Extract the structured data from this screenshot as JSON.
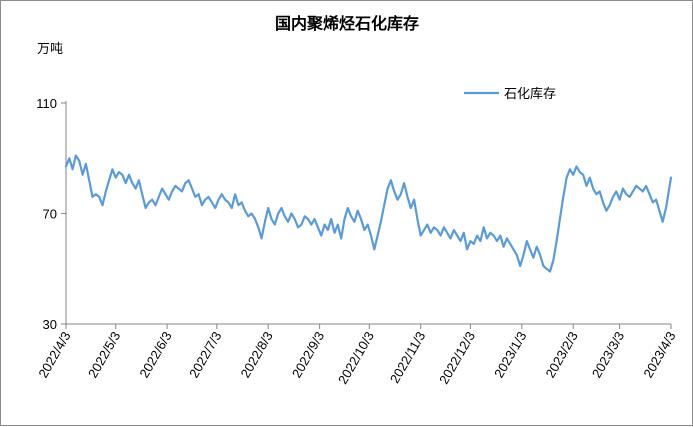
{
  "chart_data": {
    "type": "line",
    "title": "国内聚烯烃石化库存",
    "ylabel": "万吨",
    "xlabel": "",
    "ylim": [
      30,
      110
    ],
    "y_ticks": [
      "30",
      "70",
      "110"
    ],
    "x_ticks": [
      "2022/4/3",
      "2022/5/3",
      "2022/6/3",
      "2022/7/3",
      "2022/8/3",
      "2022/9/3",
      "2022/10/3",
      "2022/11/3",
      "2022/12/3",
      "2023/1/3",
      "2023/2/3",
      "2023/3/3",
      "2023/4/3"
    ],
    "grid": false,
    "legend_position": "top-right",
    "colors": {
      "series": "#5b9bd5",
      "axis": "#868686"
    },
    "series": [
      {
        "name": "石化库存",
        "points": [
          [
            "2022-04-03",
            87
          ],
          [
            "2022-04-05",
            90
          ],
          [
            "2022-04-07",
            86
          ],
          [
            "2022-04-09",
            91
          ],
          [
            "2022-04-11",
            89
          ],
          [
            "2022-04-13",
            84
          ],
          [
            "2022-04-15",
            88
          ],
          [
            "2022-04-17",
            82
          ],
          [
            "2022-04-19",
            76
          ],
          [
            "2022-04-21",
            77
          ],
          [
            "2022-04-23",
            76
          ],
          [
            "2022-04-25",
            73
          ],
          [
            "2022-04-27",
            78
          ],
          [
            "2022-04-29",
            82
          ],
          [
            "2022-05-01",
            86
          ],
          [
            "2022-05-03",
            83
          ],
          [
            "2022-05-05",
            85
          ],
          [
            "2022-05-07",
            84
          ],
          [
            "2022-05-09",
            81
          ],
          [
            "2022-05-11",
            84
          ],
          [
            "2022-05-13",
            81
          ],
          [
            "2022-05-15",
            79
          ],
          [
            "2022-05-17",
            82
          ],
          [
            "2022-05-19",
            77
          ],
          [
            "2022-05-21",
            72
          ],
          [
            "2022-05-23",
            74
          ],
          [
            "2022-05-25",
            75
          ],
          [
            "2022-05-27",
            73
          ],
          [
            "2022-05-29",
            76
          ],
          [
            "2022-05-31",
            79
          ],
          [
            "2022-06-02",
            77
          ],
          [
            "2022-06-04",
            75
          ],
          [
            "2022-06-06",
            78
          ],
          [
            "2022-06-08",
            80
          ],
          [
            "2022-06-10",
            79
          ],
          [
            "2022-06-12",
            78
          ],
          [
            "2022-06-14",
            81
          ],
          [
            "2022-06-16",
            82
          ],
          [
            "2022-06-18",
            79
          ],
          [
            "2022-06-20",
            76
          ],
          [
            "2022-06-22",
            77
          ],
          [
            "2022-06-24",
            73
          ],
          [
            "2022-06-26",
            75
          ],
          [
            "2022-06-28",
            76
          ],
          [
            "2022-06-30",
            74
          ],
          [
            "2022-07-02",
            72
          ],
          [
            "2022-07-04",
            75
          ],
          [
            "2022-07-06",
            77
          ],
          [
            "2022-07-08",
            75
          ],
          [
            "2022-07-10",
            74
          ],
          [
            "2022-07-12",
            72
          ],
          [
            "2022-07-14",
            77
          ],
          [
            "2022-07-16",
            73
          ],
          [
            "2022-07-18",
            74
          ],
          [
            "2022-07-20",
            71
          ],
          [
            "2022-07-22",
            69
          ],
          [
            "2022-07-24",
            70
          ],
          [
            "2022-07-26",
            68
          ],
          [
            "2022-07-28",
            65
          ],
          [
            "2022-07-30",
            61
          ],
          [
            "2022-08-01",
            67
          ],
          [
            "2022-08-03",
            72
          ],
          [
            "2022-08-05",
            68
          ],
          [
            "2022-08-07",
            66
          ],
          [
            "2022-08-09",
            70
          ],
          [
            "2022-08-11",
            72
          ],
          [
            "2022-08-13",
            69
          ],
          [
            "2022-08-15",
            67
          ],
          [
            "2022-08-17",
            70
          ],
          [
            "2022-08-19",
            68
          ],
          [
            "2022-08-21",
            65
          ],
          [
            "2022-08-23",
            66
          ],
          [
            "2022-08-25",
            69
          ],
          [
            "2022-08-27",
            68
          ],
          [
            "2022-08-29",
            66
          ],
          [
            "2022-08-31",
            68
          ],
          [
            "2022-09-02",
            65
          ],
          [
            "2022-09-04",
            62
          ],
          [
            "2022-09-06",
            66
          ],
          [
            "2022-09-08",
            64
          ],
          [
            "2022-09-10",
            68
          ],
          [
            "2022-09-12",
            63
          ],
          [
            "2022-09-14",
            66
          ],
          [
            "2022-09-16",
            61
          ],
          [
            "2022-09-18",
            68
          ],
          [
            "2022-09-20",
            72
          ],
          [
            "2022-09-22",
            69
          ],
          [
            "2022-09-24",
            67
          ],
          [
            "2022-09-26",
            71
          ],
          [
            "2022-09-28",
            68
          ],
          [
            "2022-09-30",
            64
          ],
          [
            "2022-10-02",
            66
          ],
          [
            "2022-10-04",
            62
          ],
          [
            "2022-10-06",
            57
          ],
          [
            "2022-10-08",
            62
          ],
          [
            "2022-10-10",
            67
          ],
          [
            "2022-10-12",
            73
          ],
          [
            "2022-10-14",
            79
          ],
          [
            "2022-10-16",
            82
          ],
          [
            "2022-10-18",
            78
          ],
          [
            "2022-10-20",
            75
          ],
          [
            "2022-10-22",
            77
          ],
          [
            "2022-10-24",
            81
          ],
          [
            "2022-10-26",
            76
          ],
          [
            "2022-10-28",
            72
          ],
          [
            "2022-10-30",
            75
          ],
          [
            "2022-11-01",
            68
          ],
          [
            "2022-11-03",
            62
          ],
          [
            "2022-11-05",
            64
          ],
          [
            "2022-11-07",
            66
          ],
          [
            "2022-11-09",
            63
          ],
          [
            "2022-11-11",
            65
          ],
          [
            "2022-11-13",
            64
          ],
          [
            "2022-11-15",
            62
          ],
          [
            "2022-11-17",
            65
          ],
          [
            "2022-11-19",
            63
          ],
          [
            "2022-11-21",
            61
          ],
          [
            "2022-11-23",
            64
          ],
          [
            "2022-11-25",
            62
          ],
          [
            "2022-11-27",
            60
          ],
          [
            "2022-11-29",
            63
          ],
          [
            "2022-12-01",
            57
          ],
          [
            "2022-12-03",
            60
          ],
          [
            "2022-12-05",
            59
          ],
          [
            "2022-12-07",
            62
          ],
          [
            "2022-12-09",
            60
          ],
          [
            "2022-12-11",
            65
          ],
          [
            "2022-12-13",
            61
          ],
          [
            "2022-12-15",
            63
          ],
          [
            "2022-12-17",
            62
          ],
          [
            "2022-12-19",
            60
          ],
          [
            "2022-12-21",
            62
          ],
          [
            "2022-12-23",
            58
          ],
          [
            "2022-12-25",
            61
          ],
          [
            "2022-12-27",
            59
          ],
          [
            "2022-12-29",
            57
          ],
          [
            "2022-12-31",
            55
          ],
          [
            "2023-01-02",
            51
          ],
          [
            "2023-01-04",
            55
          ],
          [
            "2023-01-06",
            60
          ],
          [
            "2023-01-08",
            57
          ],
          [
            "2023-01-10",
            54
          ],
          [
            "2023-01-12",
            58
          ],
          [
            "2023-01-14",
            55
          ],
          [
            "2023-01-16",
            51
          ],
          [
            "2023-01-18",
            50
          ],
          [
            "2023-01-20",
            49
          ],
          [
            "2023-01-22",
            53
          ],
          [
            "2023-01-24",
            60
          ],
          [
            "2023-01-26",
            68
          ],
          [
            "2023-01-28",
            76
          ],
          [
            "2023-01-30",
            83
          ],
          [
            "2023-02-01",
            86
          ],
          [
            "2023-02-03",
            84
          ],
          [
            "2023-02-05",
            87
          ],
          [
            "2023-02-07",
            85
          ],
          [
            "2023-02-09",
            84
          ],
          [
            "2023-02-11",
            80
          ],
          [
            "2023-02-13",
            83
          ],
          [
            "2023-02-15",
            79
          ],
          [
            "2023-02-17",
            77
          ],
          [
            "2023-02-19",
            78
          ],
          [
            "2023-02-21",
            74
          ],
          [
            "2023-02-23",
            71
          ],
          [
            "2023-02-25",
            73
          ],
          [
            "2023-02-27",
            76
          ],
          [
            "2023-03-01",
            78
          ],
          [
            "2023-03-03",
            75
          ],
          [
            "2023-03-05",
            79
          ],
          [
            "2023-03-07",
            77
          ],
          [
            "2023-03-09",
            76
          ],
          [
            "2023-03-11",
            78
          ],
          [
            "2023-03-13",
            80
          ],
          [
            "2023-03-15",
            79
          ],
          [
            "2023-03-17",
            78
          ],
          [
            "2023-03-19",
            80
          ],
          [
            "2023-03-21",
            77
          ],
          [
            "2023-03-23",
            74
          ],
          [
            "2023-03-25",
            75
          ],
          [
            "2023-03-27",
            71
          ],
          [
            "2023-03-29",
            67
          ],
          [
            "2023-03-31",
            72
          ],
          [
            "2023-04-03",
            83
          ]
        ]
      }
    ]
  }
}
